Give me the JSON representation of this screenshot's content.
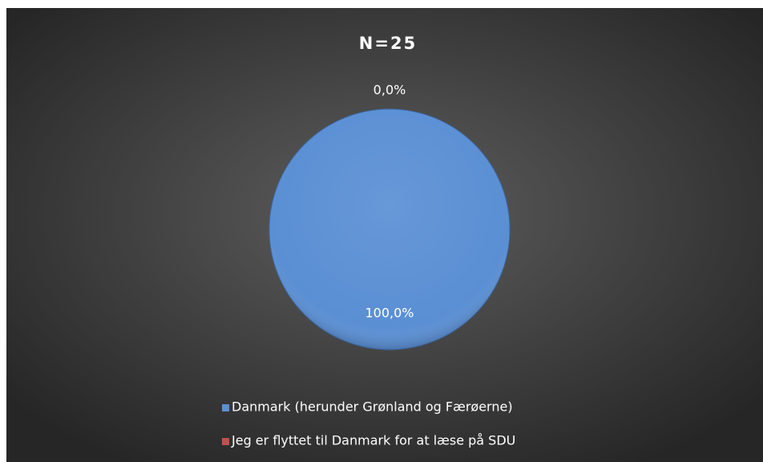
{
  "chart_data": {
    "type": "pie",
    "title": "N=25",
    "categories": [
      "Danmark (herunder Grønland og Færøerne)",
      "Jeg er flyttet til Danmark for at læse på SDU"
    ],
    "values": [
      100,
      0
    ],
    "value_labels": [
      "100,0%",
      "0,0%"
    ],
    "colors": [
      "#5a8fd4",
      "#c0504d"
    ],
    "legend": "bottom"
  }
}
